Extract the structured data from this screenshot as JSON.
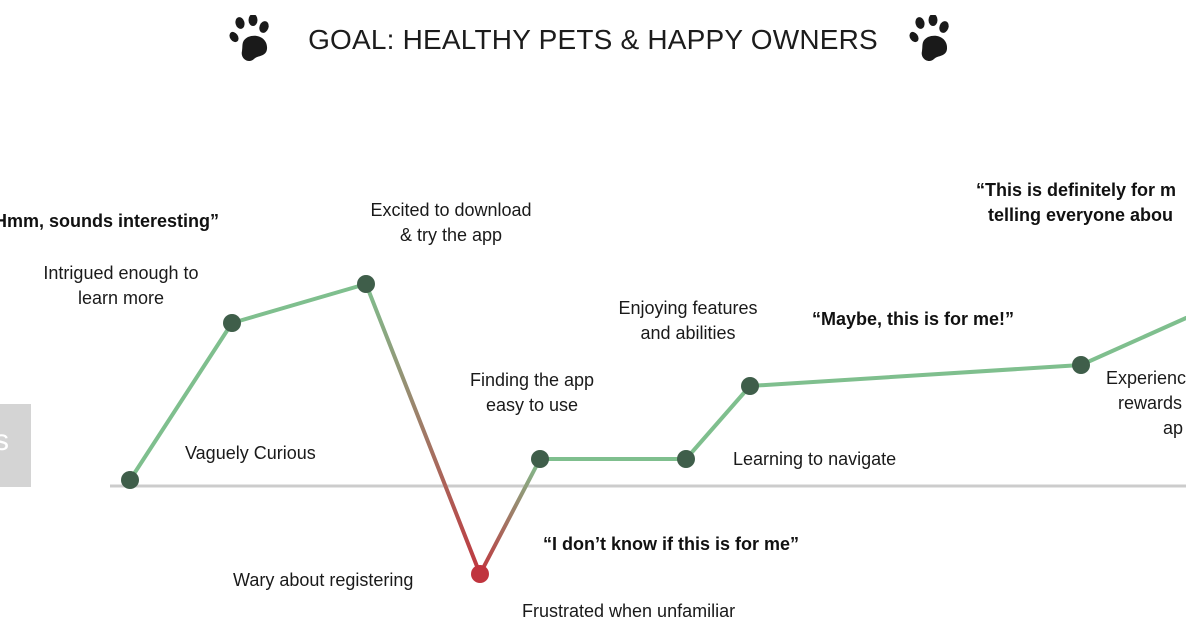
{
  "header": {
    "title": "GOAL: HEALTHY PETS & HAPPY OWNERS",
    "left_icon": "paw-print-icon",
    "right_icon": "paw-print-icon"
  },
  "side_tab": {
    "glyph": "s"
  },
  "colors": {
    "positive_line": "#7fbf8e",
    "negative_line": "#c0373f",
    "point": "#3f5e4a",
    "low_point": "#c0343e",
    "baseline": "#cccccc",
    "paw": "#1a1a1a"
  },
  "labels": {
    "vaguely_curious": "Vaguely Curious",
    "intrigued": [
      "Intrigued enough to",
      "learn more"
    ],
    "excited": [
      "Excited to download",
      "& try the app"
    ],
    "wary": "Wary about registering",
    "finding_easy": [
      "Finding the app",
      "easy to use"
    ],
    "frustrated": "Frustrated when unfamiliar",
    "enjoying": [
      "Enjoying features",
      "and abilities"
    ],
    "learning": "Learning to navigate",
    "experience": [
      "Experienc",
      "rewards",
      "ap"
    ]
  },
  "quotes": {
    "hmm": "Hmm, sounds interesting”",
    "maybe": "“Maybe, this is for me!”",
    "dont_know": "“I don’t know if this is for me”",
    "definitely": [
      "“This is definitely for m",
      "telling everyone abou"
    ]
  }
}
